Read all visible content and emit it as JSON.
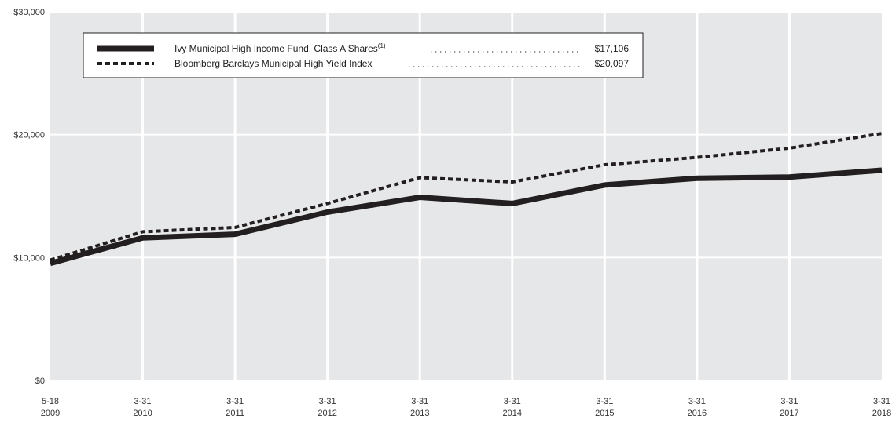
{
  "chart_data": {
    "type": "line",
    "x": [
      [
        "5-18",
        "2009"
      ],
      [
        "3-31",
        "2010"
      ],
      [
        "3-31",
        "2011"
      ],
      [
        "3-31",
        "2012"
      ],
      [
        "3-31",
        "2013"
      ],
      [
        "3-31",
        "2014"
      ],
      [
        "3-31",
        "2015"
      ],
      [
        "3-31",
        "2016"
      ],
      [
        "3-31",
        "2017"
      ],
      [
        "3-31",
        "2018"
      ]
    ],
    "series": [
      {
        "name": "Ivy Municipal High Income Fund, Class A Shares",
        "superscript": "(1)",
        "end_value_label": "$17,106",
        "style": "solid",
        "color": "#231f20",
        "values": [
          9530,
          11600,
          11900,
          13700,
          14900,
          14400,
          15900,
          16450,
          16550,
          17106
        ]
      },
      {
        "name": "Bloomberg Barclays Municipal High Yield Index",
        "end_value_label": "$20,097",
        "style": "dashed",
        "color": "#231f20",
        "values": [
          9800,
          12100,
          12450,
          14400,
          16500,
          16150,
          17550,
          18150,
          18900,
          20097
        ]
      }
    ],
    "yticks": [
      {
        "value": 0,
        "label": "$0"
      },
      {
        "value": 10000,
        "label": "$10,000"
      },
      {
        "value": 20000,
        "label": "$20,000"
      },
      {
        "value": 30000,
        "label": "$30,000"
      }
    ],
    "ylim": [
      0,
      30000
    ],
    "grid": true,
    "background_color": "#e6e7e8",
    "legend_placement": "top-left"
  }
}
